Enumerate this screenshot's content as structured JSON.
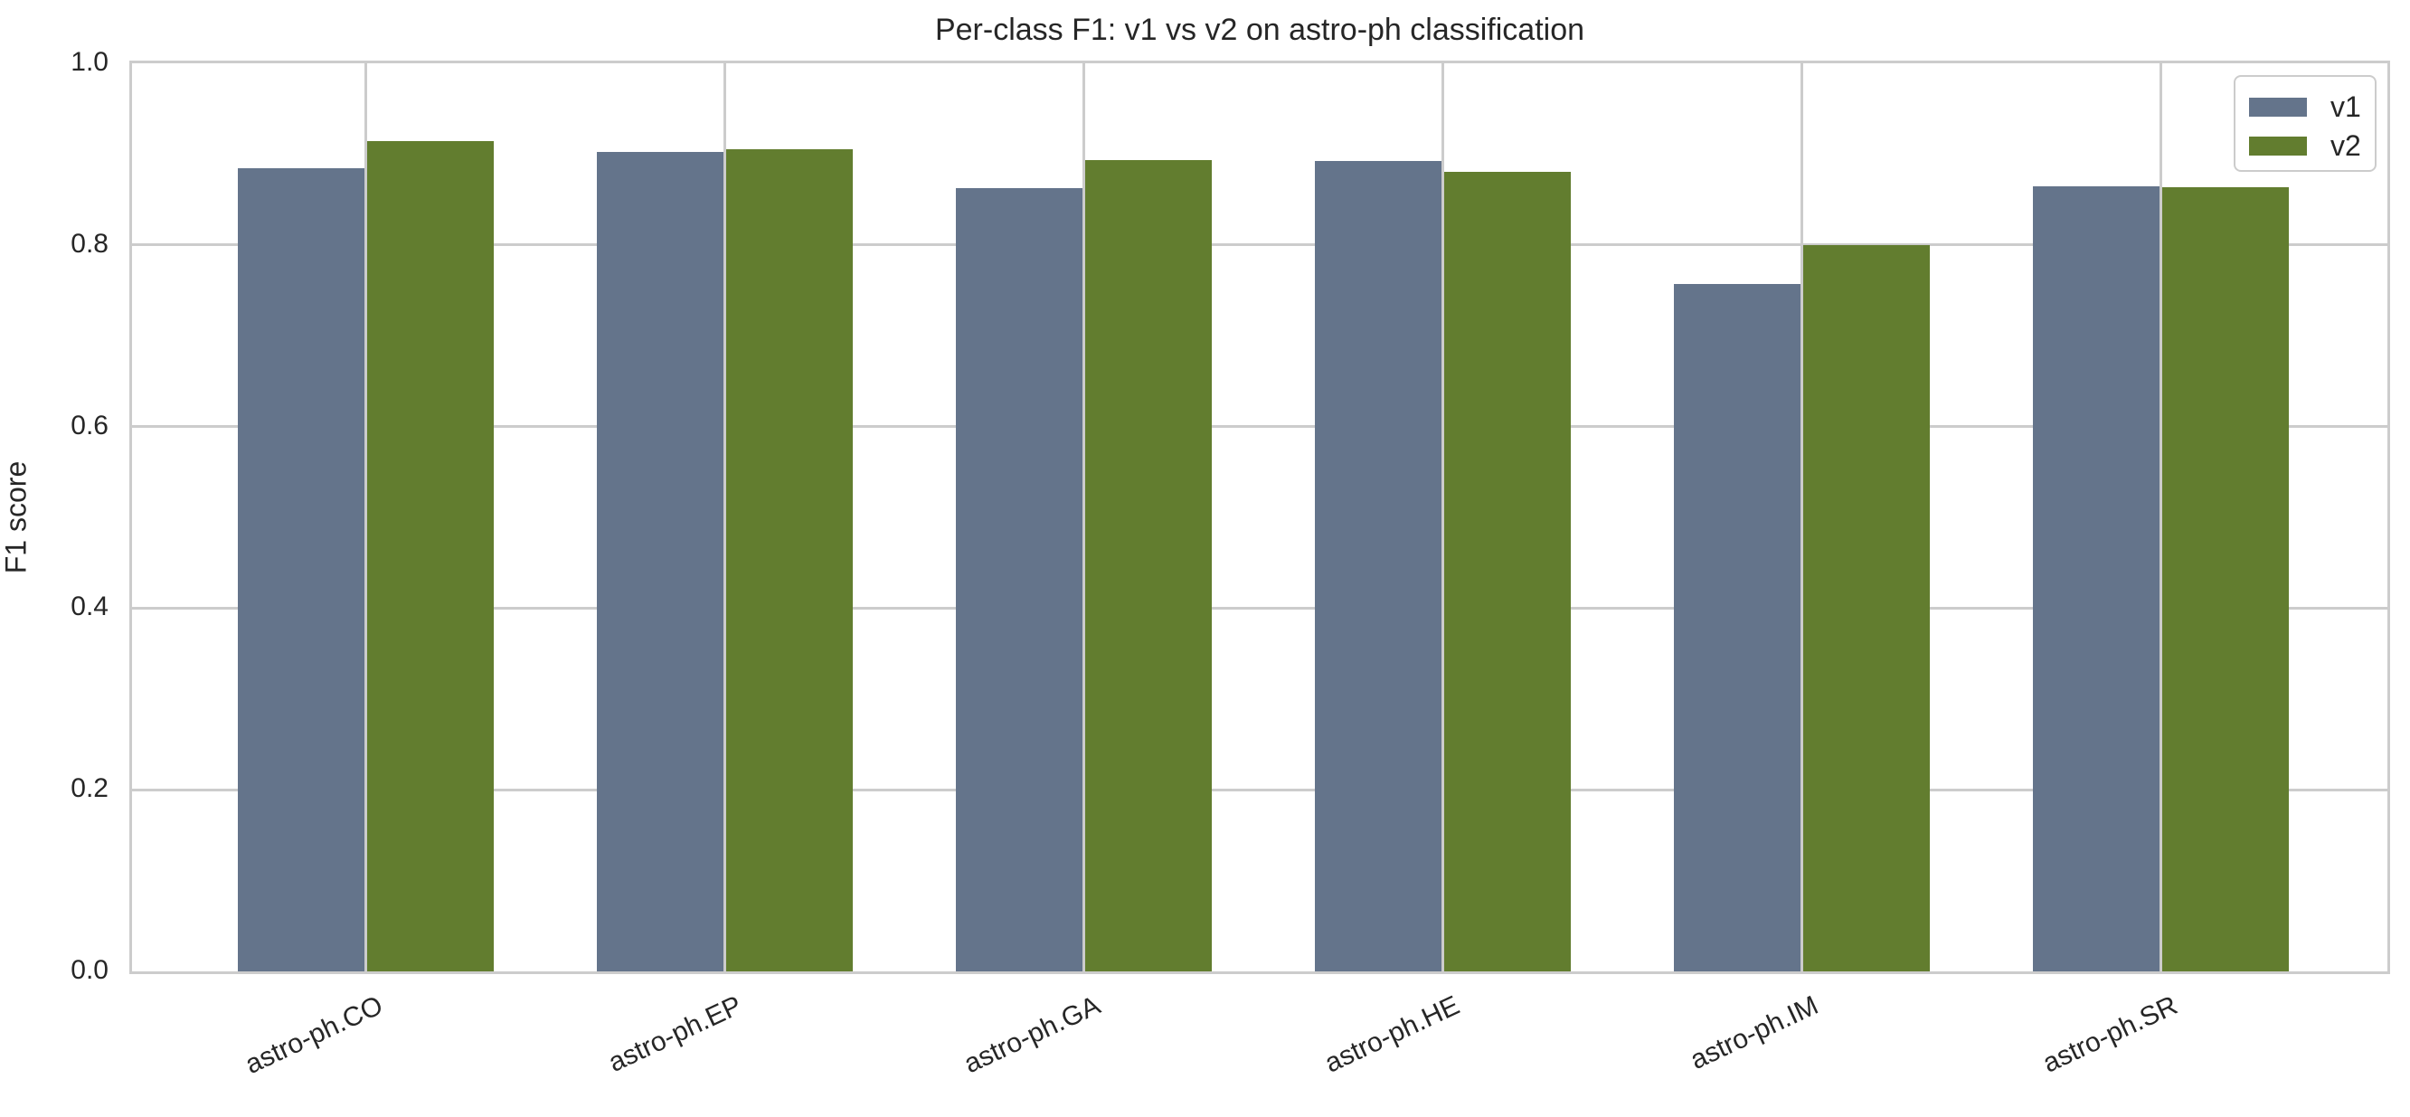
{
  "chart_data": {
    "type": "bar",
    "title": "Per-class F1: v1 vs v2 on astro-ph classification",
    "xlabel": "",
    "ylabel": "F1 score",
    "ylim": [
      0.0,
      1.0
    ],
    "yticks": [
      "0.0",
      "0.2",
      "0.4",
      "0.6",
      "0.8",
      "1.0"
    ],
    "categories": [
      "astro-ph.CO",
      "astro-ph.EP",
      "astro-ph.GA",
      "astro-ph.HE",
      "astro-ph.IM",
      "astro-ph.SR"
    ],
    "series": [
      {
        "name": "v1",
        "color": "#64748b",
        "values": [
          0.884,
          0.902,
          0.863,
          0.892,
          0.757,
          0.865
        ]
      },
      {
        "name": "v2",
        "color": "#627d2f",
        "values": [
          0.914,
          0.905,
          0.893,
          0.88,
          0.8,
          0.864
        ]
      }
    ],
    "grid": true,
    "legend_position": "upper right"
  }
}
